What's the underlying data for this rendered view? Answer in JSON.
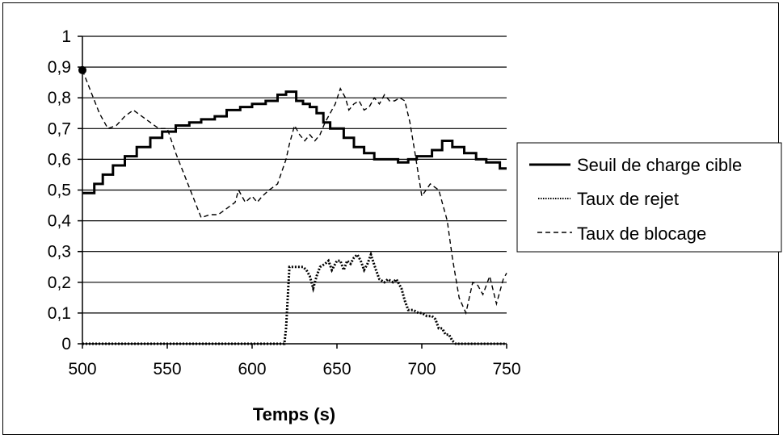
{
  "chart_data": {
    "type": "line",
    "title": "",
    "xlabel": "Temps (s)",
    "ylabel": "",
    "xlim": [
      500,
      750
    ],
    "ylim": [
      0,
      1
    ],
    "x_ticks": [
      500,
      550,
      600,
      650,
      700,
      750
    ],
    "x_tick_labels": [
      "500",
      "550",
      "600",
      "650",
      "700",
      "750"
    ],
    "y_ticks": [
      0,
      0.1,
      0.2,
      0.3,
      0.4,
      0.5,
      0.6,
      0.7,
      0.8,
      0.9,
      1
    ],
    "y_tick_labels": [
      "0",
      "0,1",
      "0,2",
      "0,3",
      "0,4",
      "0,5",
      "0,6",
      "0,7",
      "0,8",
      "0,9",
      "1"
    ],
    "grid": "horizontal",
    "legend_position": "right",
    "series": [
      {
        "name": "Seuil de charge cible",
        "style": "solid",
        "x": [
          500,
          507,
          507,
          512,
          512,
          518,
          518,
          525,
          525,
          532,
          532,
          540,
          540,
          547,
          547,
          555,
          555,
          563,
          563,
          570,
          570,
          578,
          578,
          585,
          585,
          593,
          593,
          600,
          600,
          608,
          608,
          615,
          615,
          620,
          620,
          626,
          626,
          630,
          630,
          634,
          634,
          638,
          638,
          642,
          642,
          646,
          646,
          654,
          654,
          660,
          660,
          666,
          666,
          672,
          672,
          678,
          678,
          686,
          686,
          692,
          692,
          697,
          697,
          706,
          706,
          712,
          712,
          718,
          718,
          725,
          725,
          732,
          732,
          738,
          738,
          746,
          746,
          750
        ],
        "values": [
          0.49,
          0.49,
          0.52,
          0.52,
          0.55,
          0.55,
          0.58,
          0.58,
          0.61,
          0.61,
          0.64,
          0.64,
          0.67,
          0.67,
          0.69,
          0.69,
          0.71,
          0.71,
          0.72,
          0.72,
          0.73,
          0.73,
          0.74,
          0.74,
          0.76,
          0.76,
          0.77,
          0.77,
          0.78,
          0.78,
          0.79,
          0.79,
          0.81,
          0.81,
          0.82,
          0.82,
          0.79,
          0.79,
          0.78,
          0.78,
          0.77,
          0.77,
          0.75,
          0.75,
          0.72,
          0.72,
          0.7,
          0.7,
          0.67,
          0.67,
          0.64,
          0.64,
          0.62,
          0.62,
          0.6,
          0.6,
          0.6,
          0.6,
          0.59,
          0.59,
          0.6,
          0.6,
          0.61,
          0.61,
          0.63,
          0.63,
          0.66,
          0.66,
          0.64,
          0.64,
          0.62,
          0.62,
          0.6,
          0.6,
          0.59,
          0.59,
          0.57,
          0.57
        ],
        "color": "#000000"
      },
      {
        "name": "Taux de rejet",
        "style": "dotted",
        "x": [
          500,
          619,
          620,
          622,
          626,
          630,
          632,
          634,
          636,
          638,
          640,
          643,
          645,
          647,
          650,
          652,
          654,
          656,
          658,
          660,
          662,
          664,
          666,
          668,
          670,
          673,
          675,
          678,
          680,
          683,
          685,
          688,
          690,
          692,
          695,
          698,
          700,
          703,
          706,
          708,
          710,
          712,
          714,
          716,
          718,
          720,
          750
        ],
        "values": [
          0,
          0,
          0.05,
          0.25,
          0.25,
          0.25,
          0.24,
          0.22,
          0.18,
          0.22,
          0.25,
          0.26,
          0.27,
          0.24,
          0.27,
          0.27,
          0.24,
          0.27,
          0.26,
          0.28,
          0.29,
          0.27,
          0.24,
          0.26,
          0.29,
          0.24,
          0.21,
          0.2,
          0.21,
          0.2,
          0.21,
          0.18,
          0.14,
          0.11,
          0.11,
          0.1,
          0.1,
          0.09,
          0.09,
          0.08,
          0.05,
          0.05,
          0.03,
          0.03,
          0.01,
          0,
          0
        ],
        "color": "#000000"
      },
      {
        "name": "Taux de blocage",
        "style": "dashed",
        "x": [
          500,
          505,
          510,
          515,
          520,
          525,
          530,
          535,
          540,
          545,
          550,
          555,
          560,
          565,
          570,
          575,
          580,
          585,
          590,
          592,
          596,
          600,
          603,
          606,
          610,
          615,
          620,
          622,
          625,
          628,
          631,
          634,
          637,
          640,
          643,
          646,
          649,
          652,
          655,
          657,
          660,
          663,
          666,
          669,
          672,
          675,
          678,
          681,
          684,
          687,
          690,
          693,
          696,
          700,
          705,
          710,
          715,
          718,
          722,
          726,
          730,
          733,
          736,
          740,
          744,
          748,
          750
        ],
        "values": [
          0.89,
          0.82,
          0.75,
          0.7,
          0.71,
          0.74,
          0.76,
          0.74,
          0.72,
          0.7,
          0.7,
          0.62,
          0.55,
          0.48,
          0.41,
          0.42,
          0.42,
          0.44,
          0.46,
          0.5,
          0.46,
          0.48,
          0.46,
          0.48,
          0.5,
          0.52,
          0.6,
          0.65,
          0.71,
          0.68,
          0.66,
          0.68,
          0.66,
          0.68,
          0.72,
          0.75,
          0.78,
          0.83,
          0.8,
          0.76,
          0.78,
          0.79,
          0.76,
          0.77,
          0.8,
          0.78,
          0.81,
          0.79,
          0.79,
          0.8,
          0.79,
          0.72,
          0.62,
          0.48,
          0.52,
          0.5,
          0.4,
          0.28,
          0.15,
          0.1,
          0.2,
          0.19,
          0.16,
          0.22,
          0.13,
          0.21,
          0.23
        ],
        "color": "#000000"
      }
    ],
    "marker": {
      "x": 500,
      "value": 0.89
    }
  }
}
